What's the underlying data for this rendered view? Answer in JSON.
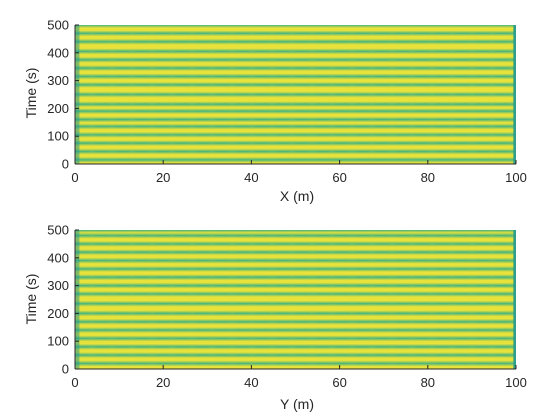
{
  "chart_data": [
    {
      "type": "heatmap",
      "title": "",
      "xlabel": "X (m)",
      "ylabel": "Time (s)",
      "xlim": [
        0,
        100
      ],
      "ylim": [
        0,
        500
      ],
      "xticks": [
        0,
        20,
        40,
        60,
        80,
        100
      ],
      "yticks": [
        0,
        100,
        200,
        300,
        400,
        500
      ],
      "band_times": [
        15,
        45,
        75,
        105,
        135,
        160,
        190,
        215,
        250,
        285,
        315,
        345,
        375,
        405,
        440,
        470,
        500
      ],
      "colors": {
        "background": "#e8e23a",
        "band": "#4fb77a",
        "edge": "#2e9f8a",
        "axis": "#262626"
      }
    },
    {
      "type": "heatmap",
      "title": "",
      "xlabel": "Y (m)",
      "ylabel": "Time (s)",
      "xlim": [
        0,
        100
      ],
      "ylim": [
        0,
        500
      ],
      "xticks": [
        0,
        20,
        40,
        60,
        80,
        100
      ],
      "yticks": [
        0,
        100,
        200,
        300,
        400,
        500
      ],
      "band_times": [
        20,
        50,
        80,
        110,
        140,
        170,
        200,
        235,
        270,
        300,
        330,
        360,
        390,
        420,
        450,
        480,
        500
      ],
      "colors": {
        "background": "#e8e23a",
        "band": "#4fb77a",
        "edge": "#2e9f8a",
        "axis": "#262626"
      }
    }
  ]
}
